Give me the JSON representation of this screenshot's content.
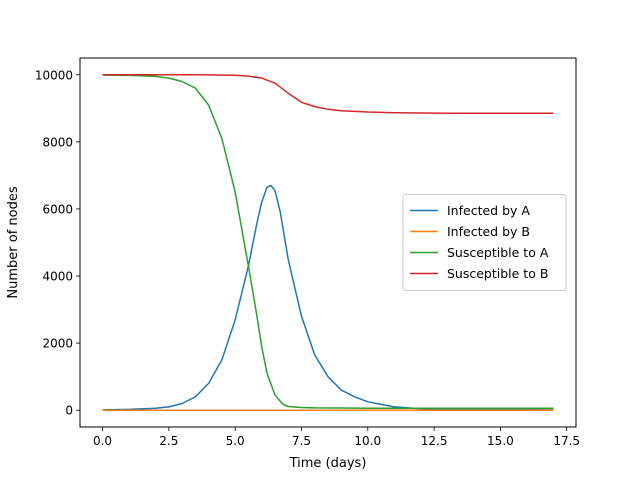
{
  "chart_data": {
    "type": "line",
    "title": "",
    "xlabel": "Time (days)",
    "ylabel": "Number of nodes",
    "xlim": [
      -0.85,
      17.85
    ],
    "ylim": [
      -500,
      10500
    ],
    "x_ticks": [
      0.0,
      2.5,
      5.0,
      7.5,
      10.0,
      12.5,
      15.0,
      17.5
    ],
    "x_tick_labels": [
      "0.0",
      "2.5",
      "5.0",
      "7.5",
      "10.0",
      "12.5",
      "15.0",
      "17.5"
    ],
    "y_ticks": [
      0,
      2000,
      4000,
      6000,
      8000,
      10000
    ],
    "y_tick_labels": [
      "0",
      "2000",
      "4000",
      "6000",
      "8000",
      "10000"
    ],
    "grid": false,
    "legend_position": "center-right",
    "series": [
      {
        "name": "Infected by A",
        "color": "#1f77b4",
        "x": [
          0,
          1,
          2,
          2.5,
          3,
          3.5,
          4,
          4.5,
          5,
          5.5,
          5.8,
          6,
          6.2,
          6.35,
          6.5,
          6.7,
          7,
          7.5,
          8,
          8.5,
          9,
          9.5,
          10,
          11,
          12,
          13,
          14,
          15,
          16,
          17
        ],
        "y": [
          10,
          25,
          60,
          100,
          200,
          400,
          800,
          1500,
          2700,
          4300,
          5500,
          6200,
          6650,
          6700,
          6550,
          5900,
          4500,
          2800,
          1650,
          1000,
          600,
          400,
          250,
          100,
          45,
          25,
          20,
          15,
          12,
          10
        ]
      },
      {
        "name": "Infected by B",
        "color": "#ff7f0e",
        "x": [
          0,
          5,
          10,
          17
        ],
        "y": [
          0,
          2,
          1,
          0
        ]
      },
      {
        "name": "Susceptible to A",
        "color": "#2ca02c",
        "x": [
          0,
          1,
          2,
          2.5,
          3,
          3.5,
          4,
          4.5,
          5,
          5.5,
          5.8,
          6,
          6.2,
          6.5,
          6.8,
          7,
          7.5,
          8,
          9,
          10,
          12,
          14,
          17
        ],
        "y": [
          9990,
          9980,
          9950,
          9900,
          9800,
          9600,
          9100,
          8100,
          6500,
          4300,
          2900,
          1900,
          1100,
          450,
          180,
          110,
          80,
          70,
          65,
          60,
          60,
          60,
          60
        ]
      },
      {
        "name": "Susceptible to B",
        "color": "#d62728",
        "x": [
          0,
          1,
          2,
          3,
          4,
          5,
          5.5,
          6,
          6.5,
          7,
          7.5,
          8,
          8.5,
          9,
          10,
          11,
          12,
          13,
          15,
          17
        ],
        "y": [
          10000,
          10000,
          9999,
          9998,
          9995,
          9985,
          9960,
          9900,
          9750,
          9450,
          9180,
          9050,
          8970,
          8930,
          8890,
          8870,
          8860,
          8855,
          8853,
          8852
        ]
      }
    ]
  }
}
